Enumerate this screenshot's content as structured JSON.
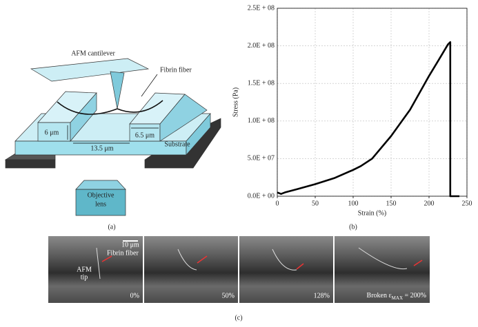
{
  "panel_a": {
    "cantilever": "AFM cantilever",
    "fiber": "Fibrin fiber",
    "height": "6 μm",
    "gap": "13.5 μm",
    "ridge": "6.5 μm",
    "substrate": "Substrate",
    "objective": [
      "Objective",
      "lens"
    ],
    "caption": "(a)"
  },
  "chart_data": {
    "type": "line",
    "x_label": "Strain (%)",
    "y_label": "Stress (Pa)",
    "caption": "(b)",
    "xlim": [
      0,
      250
    ],
    "xticks": [
      0,
      50,
      100,
      150,
      200,
      250
    ],
    "ylim": [
      0,
      250000000
    ],
    "yticks": [
      {
        "value": 0,
        "label": "0.0E + 00"
      },
      {
        "value": 50000000,
        "label": "5.0E + 07"
      },
      {
        "value": 100000000,
        "label": "1.0E + 08"
      },
      {
        "value": 150000000,
        "label": "1.5E + 08"
      },
      {
        "value": 200000000,
        "label": "2.0E + 08"
      },
      {
        "value": 250000000,
        "label": "2.5E + 08"
      }
    ],
    "grid": true,
    "series": [
      {
        "color": "#000000",
        "x": [
          0,
          5,
          10,
          25,
          50,
          75,
          100,
          110,
          125,
          150,
          175,
          200,
          215,
          225,
          228,
          228,
          240
        ],
        "values": [
          5000000,
          3000000,
          5000000,
          9000000,
          16000000,
          24000000,
          35000000,
          40000000,
          50000000,
          80000000,
          115000000,
          160000000,
          185000000,
          202000000,
          205000000,
          0,
          0
        ]
      }
    ]
  },
  "panel_c": {
    "scale_bar": "10 μm",
    "fiber": "Fibrin fiber",
    "tip": [
      "AFM",
      "tip"
    ],
    "frames": [
      {
        "label": "0%"
      },
      {
        "label": "50%"
      },
      {
        "label": "128%"
      },
      {
        "label": "Broken ε",
        "subscript": "MAX",
        "suffix": " = 200%"
      }
    ],
    "caption": "(c)"
  }
}
